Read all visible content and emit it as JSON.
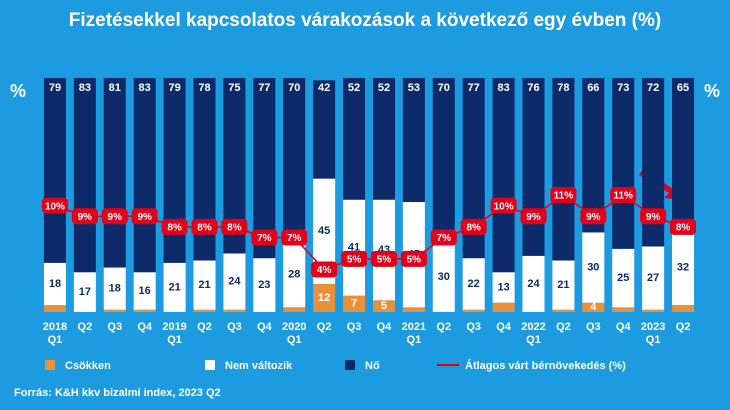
{
  "chart_data": {
    "type": "stacked-bar-line",
    "title": "Fizetésekkel kapcsolatos várakozások a következő egy évben (%)",
    "y_label": "%",
    "y2_label": "%",
    "source": "Forrás: K&H kkv bizalmi index, 2023 Q2",
    "categories": [
      "2018 Q1",
      "Q2",
      "Q3",
      "Q4",
      "2019 Q1",
      "Q2",
      "Q3",
      "Q4",
      "2020 Q1",
      "Q2",
      "Q3",
      "Q4",
      "2021 Q1",
      "Q2",
      "Q3",
      "Q4",
      "2022 Q1",
      "Q2",
      "Q3",
      "Q4",
      "2023 Q1",
      "Q2"
    ],
    "ylim": [
      0,
      100
    ],
    "y2lim": [
      0,
      22
    ],
    "series": [
      {
        "name": "Csökken",
        "color": "#e8913a",
        "label_color": "#ffffff",
        "values": [
          3,
          0,
          1,
          1,
          0,
          1,
          1,
          0,
          2,
          12,
          7,
          5,
          2,
          0,
          1,
          4,
          0,
          1,
          4,
          2,
          1,
          3
        ],
        "value_labels": [
          null,
          null,
          null,
          null,
          null,
          null,
          null,
          null,
          null,
          "12",
          "7",
          "5",
          null,
          null,
          null,
          null,
          null,
          null,
          "4",
          null,
          null,
          null
        ]
      },
      {
        "name": "Nem változik",
        "color": "#ffffff",
        "label_color": "#0d2a6b",
        "values": [
          18,
          17,
          18,
          16,
          21,
          21,
          24,
          23,
          28,
          45,
          41,
          43,
          45,
          30,
          22,
          13,
          24,
          21,
          30,
          25,
          27,
          32
        ]
      },
      {
        "name": "Nő",
        "color": "#0d2a6b",
        "label_color": "#ffffff",
        "values": [
          79,
          83,
          81,
          83,
          79,
          78,
          75,
          77,
          70,
          42,
          52,
          52,
          53,
          70,
          77,
          83,
          76,
          78,
          66,
          73,
          72,
          65
        ]
      },
      {
        "name": "Átlagos várt bérnövekedés (%)",
        "color": "#e3001b",
        "axis": "y2",
        "kind": "line",
        "values": [
          10,
          9,
          9,
          9,
          8,
          8,
          8,
          7,
          7,
          4,
          5,
          5,
          5,
          7,
          8,
          10,
          9,
          11,
          9,
          11,
          9,
          8
        ],
        "value_labels": [
          "10%",
          "9%",
          "9%",
          "9%",
          "8%",
          "8%",
          "8%",
          "7%",
          "7%",
          "4%",
          "5%",
          "5%",
          "5%",
          "7%",
          "8%",
          "10%",
          "9%",
          "11%",
          "9%",
          "11%",
          "9%",
          "8%"
        ]
      }
    ]
  }
}
